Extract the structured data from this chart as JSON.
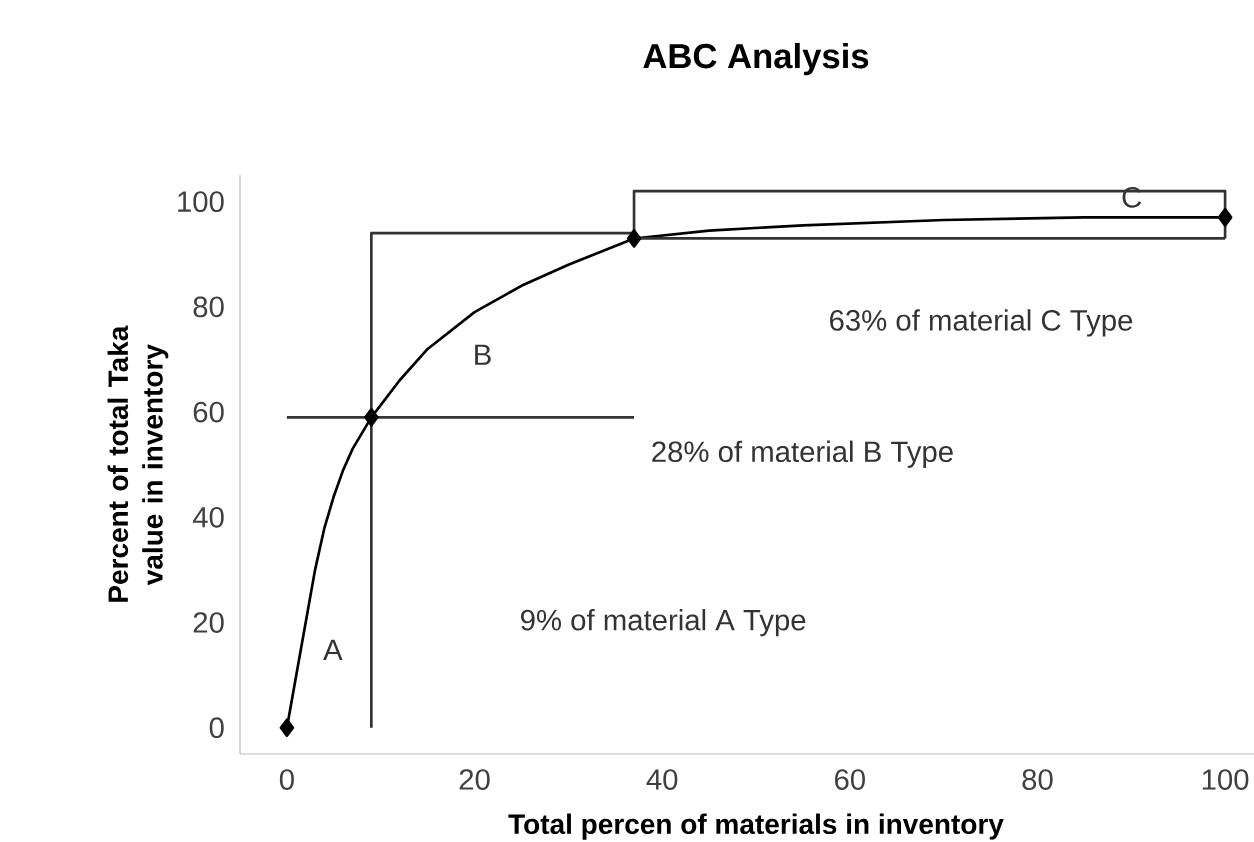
{
  "chart_data": {
    "type": "line",
    "title": "ABC Analysis",
    "xlabel": "Total percen of materials in inventory",
    "ylabel": "Percent of total Taka value in inventory",
    "xlim": [
      -5,
      105
    ],
    "ylim": [
      -5,
      105
    ],
    "xticks": [
      0,
      20,
      40,
      60,
      80,
      100
    ],
    "yticks": [
      0,
      20,
      40,
      60,
      80,
      100
    ],
    "grid": false,
    "series": [
      {
        "color": "#000000",
        "marker": "none",
        "x": [
          0,
          1,
          2,
          3,
          4,
          5,
          6,
          7,
          8,
          9,
          12,
          15,
          20,
          25,
          30,
          37,
          45,
          55,
          70,
          85,
          100
        ],
        "values": [
          0,
          10,
          20,
          30,
          38,
          44,
          49,
          53,
          56,
          59,
          66,
          72,
          79,
          84,
          88,
          93,
          94.5,
          95.5,
          96.5,
          97,
          97
        ]
      },
      {
        "type": "scatter",
        "color": "#000000",
        "marker": "diamond",
        "x": [
          0,
          9,
          37,
          100
        ],
        "values": [
          0,
          59,
          93,
          97
        ]
      },
      {
        "color": "#333333",
        "marker": "none",
        "x": [
          0,
          37
        ],
        "values": [
          59,
          59
        ]
      },
      {
        "color": "#333333",
        "marker": "none",
        "x": [
          9,
          9,
          37
        ],
        "values": [
          0,
          94,
          94
        ]
      },
      {
        "color": "#333333",
        "marker": "none",
        "x": [
          37,
          37,
          100,
          100
        ],
        "values": [
          93,
          102,
          102,
          93
        ]
      },
      {
        "color": "#333333",
        "marker": "none",
        "x": [
          37,
          100
        ],
        "values": [
          93,
          93
        ]
      }
    ],
    "annotations": [
      "A",
      "B",
      "C",
      "63% of material C Type",
      "28% of material B Type",
      "9% of material A Type"
    ]
  }
}
